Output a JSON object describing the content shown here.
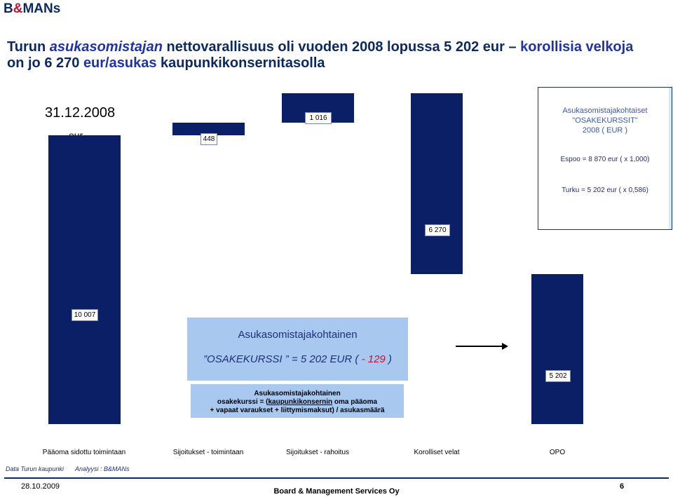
{
  "logo": {
    "b": "B",
    "amp": "&",
    "rest": "MANs"
  },
  "headline": {
    "part1": "Turun ",
    "part2": "asukasomistajan",
    "part3": " nettovarallisuus oli vuoden 2008 lopussa 5 202 eur – ",
    "part4": "korollisia velkoja",
    "line2_a": "on jo 6 270 ",
    "line2_b": "eur/asukas",
    "line2_c": " kaupunkikonsernitasolla"
  },
  "date_label": "31.12.2008",
  "unit_label": "eur",
  "info_box": {
    "header1": "Asukasomistajakohtaiset",
    "header2": "”OSAKEKURSSIT”",
    "header3": "2008 ( EUR )",
    "espoo": "Espoo = 8 870 eur ( x 1,000)",
    "turku": "Turku = 5 202 eur ( x 0,586)"
  },
  "callout_main": {
    "title": "Asukasomistajakohtainen",
    "line_a": "”OSAKEKURSSI ” = 5 202 EUR ( ",
    "line_neg": "- 129",
    "line_b": " )"
  },
  "callout_formula": {
    "line1": "Asukasomistajakohtainen",
    "line2_a": "osakekurssi = (",
    "line2_u": "kaupunkikonsernin",
    "line2_b": " oma pääoma",
    "line3": "+ vapaat varaukset + liittymismaksut) / asukasmäärä"
  },
  "colors": {
    "bar": "#0a1f66",
    "callout": "#a9c8f0",
    "accent": "#c8102e"
  },
  "chart_data": {
    "type": "bar",
    "subtype": "waterfall",
    "categories": [
      "Pääoma sidottu toimintaan",
      "Sijoitukset - toimintaan",
      "Sijoitukset - rahoitus",
      "Korolliset velat",
      "OPO"
    ],
    "values": [
      10007,
      448,
      1016,
      -6270,
      5202
    ],
    "value_labels": [
      "10 007",
      "448",
      "1 016",
      "6 270",
      "5 202"
    ],
    "title": "",
    "xlabel": "",
    "ylabel": "eur",
    "ylim": [
      0,
      11500
    ],
    "grid": false,
    "legend": "none"
  },
  "footer": {
    "source": "Data Turun kaupunki",
    "analysis": "Analyysi : B&MANs",
    "date": "28.10.2009",
    "org": "Board & Management Services Oy",
    "page": "6"
  }
}
